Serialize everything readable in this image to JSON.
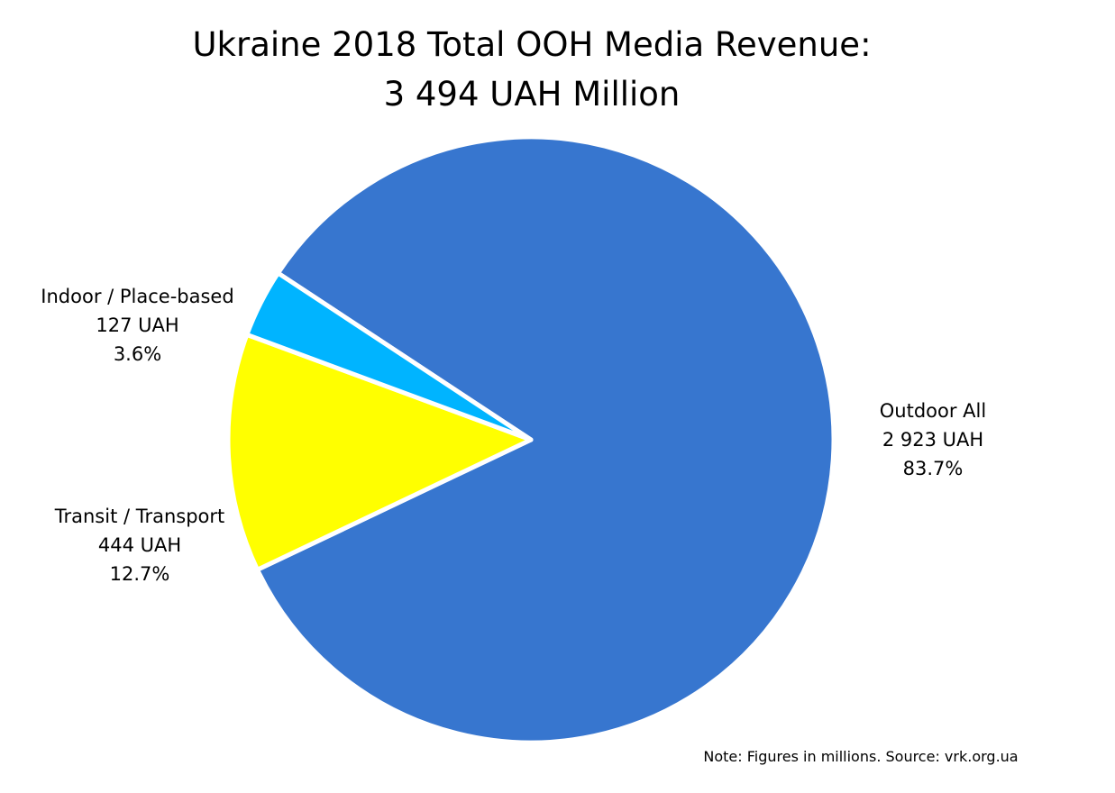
{
  "chart_data": {
    "type": "pie",
    "title_line1": "Ukraine 2018 Total OOH Media Revenue:",
    "title_line2": "3 494 UAH Million",
    "slices": [
      {
        "name": "Outdoor All",
        "value": 2923,
        "value_label": "2 923 UAH",
        "percent": 83.7,
        "percent_label": "83.7%",
        "color": "#3776CF"
      },
      {
        "name": "Transit / Transport",
        "value": 444,
        "value_label": "444 UAH",
        "percent": 12.7,
        "percent_label": "12.7%",
        "color": "#FFFF00"
      },
      {
        "name": "Indoor / Place-based",
        "value": 127,
        "value_label": "127 UAH",
        "percent": 3.6,
        "percent_label": "3.6%",
        "color": "#00B4FF"
      }
    ],
    "legend": "none",
    "note": "Note: Figures in millions. Source: vrk.org.ua"
  }
}
